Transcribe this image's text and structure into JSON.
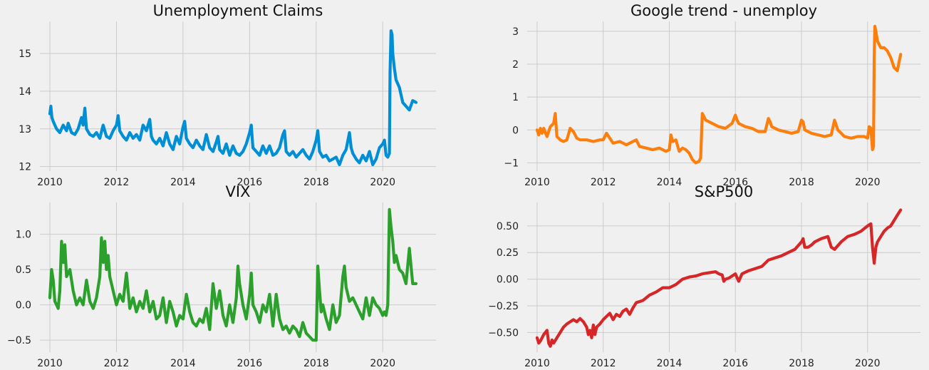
{
  "chart_data": [
    {
      "type": "line",
      "title": "Unemployment Claims",
      "xlim": [
        2009.7,
        2021.6
      ],
      "ylim": [
        11.88,
        15.85
      ],
      "xticks": [
        2010,
        2012,
        2014,
        2016,
        2018,
        2020
      ],
      "yticks": [
        12,
        13,
        14,
        15
      ],
      "grid": true,
      "color": "#008fd5",
      "series": [
        {
          "x": [
            2010.0,
            2010.03,
            2010.06,
            2010.1,
            2010.15,
            2010.2,
            2010.3,
            2010.4,
            2010.5,
            2010.55,
            2010.65,
            2010.75,
            2010.85,
            2010.95,
            2011.0,
            2011.05,
            2011.1,
            2011.2,
            2011.3,
            2011.4,
            2011.5,
            2011.6,
            2011.7,
            2011.8,
            2011.9,
            2012.0,
            2012.05,
            2012.1,
            2012.2,
            2012.3,
            2012.4,
            2012.5,
            2012.6,
            2012.7,
            2012.8,
            2012.9,
            2013.0,
            2013.05,
            2013.1,
            2013.2,
            2013.3,
            2013.4,
            2013.5,
            2013.6,
            2013.7,
            2013.8,
            2013.9,
            2014.0,
            2014.05,
            2014.1,
            2014.2,
            2014.3,
            2014.4,
            2014.5,
            2014.6,
            2014.7,
            2014.8,
            2014.9,
            2015.0,
            2015.05,
            2015.1,
            2015.2,
            2015.3,
            2015.4,
            2015.5,
            2015.6,
            2015.7,
            2015.8,
            2015.9,
            2016.0,
            2016.05,
            2016.1,
            2016.2,
            2016.3,
            2016.4,
            2016.5,
            2016.6,
            2016.7,
            2016.8,
            2016.9,
            2017.0,
            2017.05,
            2017.1,
            2017.2,
            2017.3,
            2017.4,
            2017.5,
            2017.6,
            2017.7,
            2017.8,
            2017.9,
            2018.0,
            2018.05,
            2018.1,
            2018.2,
            2018.3,
            2018.4,
            2018.5,
            2018.6,
            2018.7,
            2018.8,
            2018.9,
            2019.0,
            2019.05,
            2019.1,
            2019.2,
            2019.3,
            2019.4,
            2019.5,
            2019.6,
            2019.7,
            2019.8,
            2019.9,
            2020.0,
            2020.05,
            2020.1,
            2020.15,
            2020.2,
            2020.22,
            2020.25,
            2020.28,
            2020.3,
            2020.35,
            2020.4,
            2020.5,
            2020.6,
            2020.7,
            2020.8,
            2020.9,
            2021.0
          ],
          "y": [
            13.4,
            13.6,
            13.3,
            13.2,
            13.1,
            13.0,
            12.9,
            13.1,
            12.95,
            13.15,
            12.9,
            12.85,
            13.0,
            13.3,
            13.1,
            13.55,
            13.0,
            12.85,
            12.8,
            12.9,
            12.75,
            13.1,
            12.8,
            12.75,
            12.95,
            13.1,
            13.35,
            12.95,
            12.8,
            12.7,
            12.9,
            12.75,
            12.85,
            12.7,
            13.1,
            12.95,
            13.25,
            12.8,
            12.7,
            12.6,
            12.75,
            12.55,
            12.9,
            12.6,
            12.45,
            12.8,
            12.6,
            13.05,
            13.2,
            12.75,
            12.6,
            12.5,
            12.7,
            12.55,
            12.45,
            12.85,
            12.5,
            12.4,
            12.65,
            12.8,
            12.45,
            12.35,
            12.6,
            12.3,
            12.55,
            12.35,
            12.3,
            12.4,
            12.6,
            12.9,
            13.1,
            12.5,
            12.4,
            12.3,
            12.55,
            12.35,
            12.55,
            12.3,
            12.35,
            12.5,
            12.85,
            12.95,
            12.4,
            12.3,
            12.4,
            12.25,
            12.35,
            12.45,
            12.3,
            12.2,
            12.4,
            12.7,
            12.95,
            12.4,
            12.25,
            12.3,
            12.15,
            12.2,
            12.25,
            12.05,
            12.3,
            12.45,
            12.9,
            12.5,
            12.35,
            12.2,
            12.1,
            12.3,
            12.15,
            12.4,
            12.05,
            12.2,
            12.5,
            12.6,
            12.7,
            12.3,
            12.25,
            12.35,
            14.5,
            15.6,
            15.5,
            15.0,
            14.6,
            14.3,
            14.1,
            13.7,
            13.6,
            13.5,
            13.75,
            13.7
          ],
          "values_note": ""
        }
      ]
    },
    {
      "type": "line",
      "title": "Google trend - unemploy",
      "xlim": [
        2009.7,
        2021.6
      ],
      "ylim": [
        -1.25,
        3.3
      ],
      "xticks": [
        2010,
        2012,
        2014,
        2016,
        2018,
        2020
      ],
      "yticks": [
        -1,
        0,
        1,
        2,
        3
      ],
      "grid": true,
      "color": "#fc7f0e",
      "series": [
        {
          "x": [
            2010.0,
            2010.05,
            2010.1,
            2010.15,
            2010.2,
            2010.3,
            2010.4,
            2010.5,
            2010.55,
            2010.6,
            2010.7,
            2010.8,
            2010.9,
            2011.0,
            2011.1,
            2011.2,
            2011.3,
            2011.5,
            2011.7,
            2011.9,
            2012.0,
            2012.1,
            2012.3,
            2012.5,
            2012.7,
            2012.9,
            2013.0,
            2013.1,
            2013.3,
            2013.5,
            2013.7,
            2013.9,
            2014.0,
            2014.05,
            2014.1,
            2014.2,
            2014.3,
            2014.4,
            2014.5,
            2014.6,
            2014.7,
            2014.8,
            2014.9,
            2014.95,
            2015.0,
            2015.05,
            2015.1,
            2015.2,
            2015.3,
            2015.5,
            2015.7,
            2015.9,
            2016.0,
            2016.05,
            2016.1,
            2016.3,
            2016.5,
            2016.7,
            2016.9,
            2017.0,
            2017.05,
            2017.1,
            2017.3,
            2017.5,
            2017.7,
            2017.9,
            2018.0,
            2018.05,
            2018.1,
            2018.3,
            2018.5,
            2018.7,
            2018.9,
            2019.0,
            2019.1,
            2019.3,
            2019.5,
            2019.7,
            2019.9,
            2020.0,
            2020.05,
            2020.1,
            2020.15,
            2020.18,
            2020.2,
            2020.22,
            2020.25,
            2020.3,
            2020.4,
            2020.5,
            2020.6,
            2020.7,
            2020.8,
            2020.9,
            2021.0
          ],
          "y": [
            0.0,
            -0.15,
            0.05,
            -0.1,
            0.05,
            -0.2,
            0.1,
            0.2,
            0.5,
            -0.2,
            -0.3,
            -0.35,
            -0.3,
            0.05,
            -0.05,
            -0.25,
            -0.3,
            -0.3,
            -0.35,
            -0.3,
            -0.3,
            -0.1,
            -0.4,
            -0.35,
            -0.45,
            -0.35,
            -0.3,
            -0.5,
            -0.55,
            -0.6,
            -0.55,
            -0.65,
            -0.6,
            -0.15,
            -0.35,
            -0.3,
            -0.65,
            -0.55,
            -0.6,
            -0.7,
            -0.9,
            -1.0,
            -0.95,
            -0.85,
            0.5,
            0.4,
            0.3,
            0.25,
            0.2,
            0.1,
            0.05,
            0.2,
            0.45,
            0.3,
            0.2,
            0.1,
            0.05,
            -0.05,
            -0.05,
            0.35,
            0.25,
            0.1,
            0.0,
            -0.05,
            -0.1,
            -0.05,
            0.3,
            0.25,
            0.0,
            -0.1,
            -0.15,
            -0.2,
            -0.15,
            0.3,
            0.0,
            -0.2,
            -0.25,
            -0.2,
            -0.2,
            -0.25,
            0.1,
            0.05,
            -0.6,
            -0.5,
            2.2,
            3.15,
            3.0,
            2.7,
            2.5,
            2.5,
            2.4,
            2.2,
            1.9,
            1.8,
            2.3
          ],
          "values_note": ""
        }
      ]
    },
    {
      "type": "line",
      "title": "VIX",
      "xlim": [
        2009.7,
        2021.6
      ],
      "ylim": [
        -0.67,
        1.45
      ],
      "xticks": [
        2010,
        2012,
        2014,
        2016,
        2018,
        2020
      ],
      "yticks": [
        -0.5,
        0.0,
        0.5,
        1.0
      ],
      "grid": true,
      "color": "#2ca02c",
      "series": [
        {
          "x": [
            2010.0,
            2010.05,
            2010.1,
            2010.15,
            2010.2,
            2010.25,
            2010.3,
            2010.35,
            2010.4,
            2010.45,
            2010.5,
            2010.6,
            2010.7,
            2010.8,
            2010.9,
            2011.0,
            2011.1,
            2011.2,
            2011.3,
            2011.4,
            2011.5,
            2011.55,
            2011.6,
            2011.65,
            2011.7,
            2011.75,
            2011.8,
            2011.9,
            2012.0,
            2012.1,
            2012.2,
            2012.3,
            2012.4,
            2012.5,
            2012.6,
            2012.7,
            2012.8,
            2012.9,
            2013.0,
            2013.1,
            2013.2,
            2013.3,
            2013.4,
            2013.5,
            2013.6,
            2013.7,
            2013.8,
            2013.9,
            2014.0,
            2014.1,
            2014.2,
            2014.3,
            2014.4,
            2014.5,
            2014.6,
            2014.7,
            2014.8,
            2014.9,
            2015.0,
            2015.1,
            2015.2,
            2015.3,
            2015.4,
            2015.5,
            2015.6,
            2015.65,
            2015.7,
            2015.8,
            2015.9,
            2016.0,
            2016.05,
            2016.1,
            2016.2,
            2016.3,
            2016.4,
            2016.5,
            2016.6,
            2016.7,
            2016.8,
            2016.9,
            2017.0,
            2017.1,
            2017.2,
            2017.3,
            2017.4,
            2017.5,
            2017.6,
            2017.7,
            2017.8,
            2017.9,
            2018.0,
            2018.05,
            2018.1,
            2018.15,
            2018.2,
            2018.3,
            2018.4,
            2018.5,
            2018.6,
            2018.7,
            2018.8,
            2018.85,
            2018.9,
            2019.0,
            2019.1,
            2019.2,
            2019.3,
            2019.4,
            2019.5,
            2019.6,
            2019.7,
            2019.8,
            2019.9,
            2020.0,
            2020.05,
            2020.1,
            2020.15,
            2020.2,
            2020.25,
            2020.3,
            2020.35,
            2020.4,
            2020.5,
            2020.6,
            2020.7,
            2020.8,
            2020.9,
            2021.0
          ],
          "y": [
            0.1,
            0.5,
            0.35,
            0.05,
            0.0,
            -0.05,
            0.2,
            0.9,
            0.6,
            0.85,
            0.4,
            0.5,
            0.2,
            0.0,
            0.1,
            0.0,
            0.35,
            0.05,
            -0.05,
            0.1,
            0.4,
            0.95,
            0.6,
            0.9,
            0.5,
            0.7,
            0.4,
            0.2,
            0.0,
            0.15,
            0.05,
            0.45,
            -0.05,
            0.1,
            -0.1,
            0.05,
            -0.05,
            0.2,
            -0.1,
            0.05,
            -0.2,
            -0.15,
            0.1,
            -0.25,
            0.05,
            -0.1,
            -0.3,
            -0.15,
            -0.2,
            0.15,
            -0.1,
            -0.25,
            -0.3,
            -0.2,
            -0.25,
            -0.05,
            -0.35,
            0.3,
            -0.05,
            0.2,
            -0.15,
            -0.3,
            0.0,
            -0.25,
            0.1,
            0.55,
            0.3,
            0.0,
            -0.2,
            0.15,
            0.45,
            0.0,
            -0.1,
            -0.25,
            0.0,
            -0.1,
            0.15,
            -0.3,
            0.15,
            -0.2,
            -0.35,
            -0.3,
            -0.4,
            -0.3,
            -0.35,
            -0.45,
            -0.25,
            -0.4,
            -0.45,
            -0.5,
            -0.5,
            0.55,
            0.2,
            -0.1,
            0.0,
            -0.2,
            -0.35,
            0.0,
            -0.25,
            -0.15,
            0.4,
            0.55,
            0.25,
            0.05,
            0.1,
            0.0,
            -0.1,
            -0.2,
            0.1,
            -0.15,
            0.1,
            0.0,
            -0.05,
            -0.15,
            -0.1,
            -0.15,
            0.0,
            1.35,
            1.1,
            0.9,
            0.6,
            0.7,
            0.5,
            0.45,
            0.3,
            0.8,
            0.3,
            0.3
          ],
          "values_note": ""
        }
      ]
    },
    {
      "type": "line",
      "title": "S&P500",
      "xlim": [
        2009.7,
        2021.6
      ],
      "ylim": [
        -0.685,
        0.72
      ],
      "xticks": [
        2010,
        2012,
        2014,
        2016,
        2018,
        2020
      ],
      "yticks": [
        -0.5,
        -0.25,
        0.0,
        0.25,
        0.5
      ],
      "grid": true,
      "color": "#d62728",
      "series": [
        {
          "x": [
            2010.0,
            2010.05,
            2010.1,
            2010.2,
            2010.3,
            2010.35,
            2010.4,
            2010.45,
            2010.5,
            2010.6,
            2010.7,
            2010.8,
            2010.9,
            2011.0,
            2011.1,
            2011.2,
            2011.3,
            2011.4,
            2011.5,
            2011.55,
            2011.6,
            2011.65,
            2011.7,
            2011.75,
            2011.8,
            2011.9,
            2012.0,
            2012.1,
            2012.2,
            2012.3,
            2012.4,
            2012.5,
            2012.6,
            2012.7,
            2012.8,
            2012.9,
            2013.0,
            2013.2,
            2013.4,
            2013.6,
            2013.8,
            2014.0,
            2014.2,
            2014.4,
            2014.6,
            2014.8,
            2015.0,
            2015.2,
            2015.4,
            2015.5,
            2015.6,
            2015.65,
            2015.7,
            2015.8,
            2015.9,
            2016.0,
            2016.1,
            2016.2,
            2016.4,
            2016.6,
            2016.8,
            2017.0,
            2017.2,
            2017.4,
            2017.6,
            2017.8,
            2018.0,
            2018.05,
            2018.1,
            2018.2,
            2018.3,
            2018.4,
            2018.6,
            2018.8,
            2018.9,
            2019.0,
            2019.2,
            2019.4,
            2019.6,
            2019.8,
            2020.0,
            2020.1,
            2020.15,
            2020.2,
            2020.25,
            2020.3,
            2020.4,
            2020.5,
            2020.6,
            2020.7,
            2020.8,
            2020.9,
            2021.0
          ],
          "y": [
            -0.55,
            -0.6,
            -0.58,
            -0.52,
            -0.48,
            -0.6,
            -0.63,
            -0.57,
            -0.6,
            -0.55,
            -0.5,
            -0.45,
            -0.42,
            -0.4,
            -0.38,
            -0.4,
            -0.37,
            -0.4,
            -0.45,
            -0.52,
            -0.48,
            -0.55,
            -0.43,
            -0.52,
            -0.45,
            -0.42,
            -0.38,
            -0.35,
            -0.32,
            -0.38,
            -0.33,
            -0.35,
            -0.3,
            -0.28,
            -0.33,
            -0.27,
            -0.22,
            -0.2,
            -0.15,
            -0.12,
            -0.08,
            -0.08,
            -0.05,
            0.0,
            0.02,
            0.03,
            0.05,
            0.06,
            0.07,
            0.05,
            0.04,
            -0.02,
            0.0,
            0.01,
            0.03,
            0.05,
            -0.02,
            0.05,
            0.08,
            0.1,
            0.12,
            0.18,
            0.2,
            0.22,
            0.25,
            0.28,
            0.35,
            0.38,
            0.3,
            0.3,
            0.32,
            0.35,
            0.38,
            0.4,
            0.3,
            0.28,
            0.35,
            0.4,
            0.42,
            0.45,
            0.5,
            0.52,
            0.3,
            0.15,
            0.3,
            0.35,
            0.4,
            0.45,
            0.48,
            0.5,
            0.55,
            0.6,
            0.65
          ],
          "values_note": ""
        }
      ]
    }
  ]
}
